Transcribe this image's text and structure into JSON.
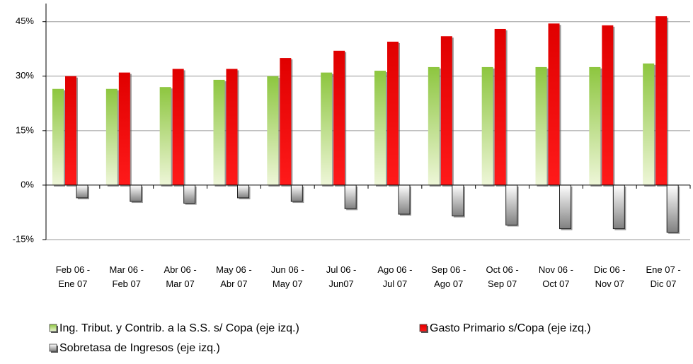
{
  "chart_data": {
    "type": "bar",
    "categories": [
      "Feb 06 - Ene 07",
      "Mar 06 - Feb 07",
      "Abr 06 - Mar 07",
      "May 06 - Abr 07",
      "Jun 06 - May 07",
      "Jul 06 - Jun07",
      "Ago 06 - Jul 07",
      "Sep 06 - Ago 07",
      "Oct 06 - Sep 07",
      "Nov 06 - Oct 07",
      "Dic 06 - Nov 07",
      "Ene 07 - Dic 07"
    ],
    "series": [
      {
        "name": "Ing. Tribut. y Contrib. a la S.S. s/ Copa (eje izq.)",
        "color": "#8dc63f",
        "values": [
          26.5,
          26.5,
          27,
          29,
          30,
          31,
          31.5,
          32.5,
          32.5,
          32.5,
          32.5,
          33.5
        ]
      },
      {
        "name": "Gasto Primario s/Copa (eje izq.)",
        "color": "#e00000",
        "values": [
          30,
          31,
          32,
          32,
          35,
          37,
          39.5,
          41,
          43,
          44.5,
          44,
          46.5
        ]
      },
      {
        "name": "Sobretasa de Ingresos (eje izq.)",
        "color": "#808080",
        "values": [
          -3.5,
          -4.5,
          -5,
          -3.5,
          -4.5,
          -6.5,
          -8,
          -8.5,
          -11,
          -12,
          -12,
          -13
        ]
      }
    ],
    "ylim": [
      -15,
      50
    ],
    "yticks": [
      {
        "value": -15,
        "label": "-15%"
      },
      {
        "value": 0,
        "label": "0%"
      },
      {
        "value": 15,
        "label": "15%"
      },
      {
        "value": 30,
        "label": "30%"
      },
      {
        "value": 45,
        "label": "45%"
      }
    ],
    "grid": true
  }
}
